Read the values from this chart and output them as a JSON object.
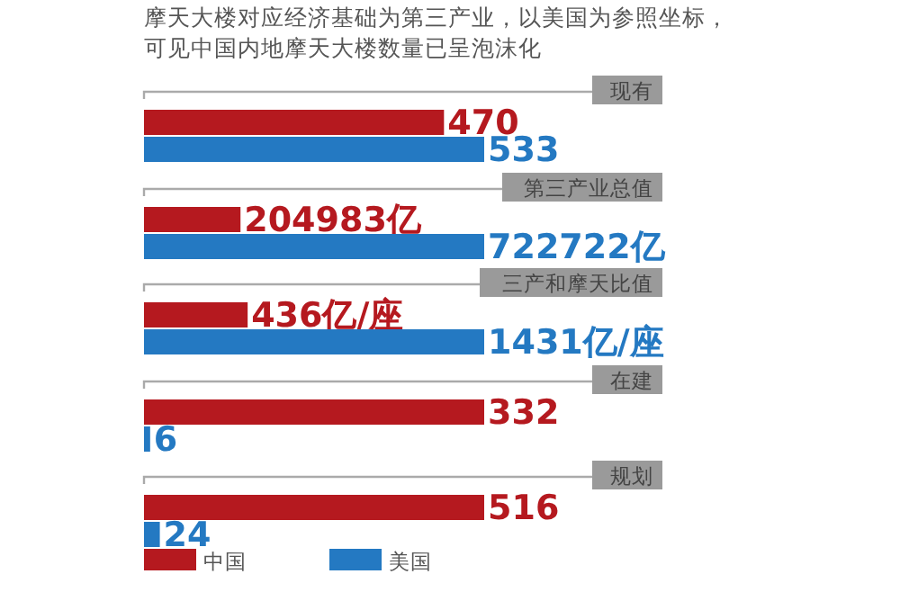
{
  "chart_data": [
    {
      "type": "other",
      "title": "摩天大楼对应经济基础为第三产业，以美国为参照坐标，可见中国内地摩天大楼数量已呈泡沫化"
    },
    {
      "type": "bar",
      "orientation": "horizontal",
      "categories": [
        "现有"
      ],
      "series": [
        {
          "color": "#b5191f",
          "values": [
            470
          ],
          "value_labels": [
            "470"
          ]
        },
        {
          "color": "#2479c2",
          "values": [
            533
          ],
          "value_labels": [
            "533"
          ]
        }
      ]
    },
    {
      "type": "bar",
      "orientation": "horizontal",
      "categories": [
        "第三产业总值"
      ],
      "series": [
        {
          "color": "#b5191f",
          "values": [
            204983
          ],
          "value_labels": [
            "204983亿"
          ]
        },
        {
          "color": "#2479c2",
          "values": [
            722722
          ],
          "value_labels": [
            "722722亿"
          ]
        }
      ]
    },
    {
      "type": "bar",
      "orientation": "horizontal",
      "categories": [
        "三产和摩天比值"
      ],
      "series": [
        {
          "color": "#b5191f",
          "values": [
            436
          ],
          "value_labels": [
            "436亿/座"
          ]
        },
        {
          "color": "#2479c2",
          "values": [
            1431
          ],
          "value_labels": [
            "1431亿/座"
          ]
        }
      ]
    },
    {
      "type": "bar",
      "orientation": "horizontal",
      "categories": [
        "在建"
      ],
      "series": [
        {
          "color": "#b5191f",
          "values": [
            332
          ],
          "value_labels": [
            "332"
          ]
        },
        {
          "color": "#2479c2",
          "values": [
            6
          ],
          "value_labels": [
            "6"
          ]
        }
      ]
    },
    {
      "type": "bar",
      "orientation": "horizontal",
      "categories": [
        "规划"
      ],
      "series": [
        {
          "name": "中国",
          "color": "#b5191f",
          "values": [
            516
          ],
          "value_labels": [
            "516"
          ]
        },
        {
          "name": "美国",
          "color": "#2479c2",
          "values": [
            24
          ],
          "value_labels": [
            "24"
          ]
        }
      ],
      "legend": "bottom"
    }
  ]
}
